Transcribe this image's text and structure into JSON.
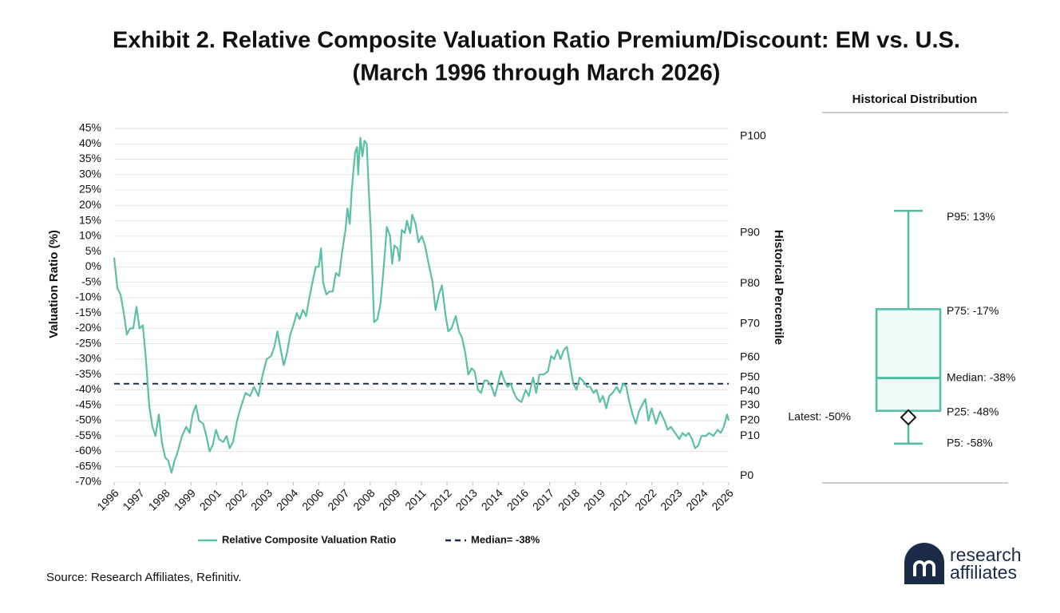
{
  "chart_data": [
    {
      "type": "line",
      "title": "Exhibit 2. Relative Composite Valuation Ratio Premium/Discount: EM vs. U.S.",
      "subtitle": "(March 1996 through March 2026)",
      "y_label": "Valuation Ratio (%)",
      "y2_label": "Historical Percentile",
      "xlim": [
        1996,
        2026
      ],
      "xticks": [
        {
          "value": 1996,
          "label": "1996"
        },
        {
          "value": 1997.25,
          "label": "1997"
        },
        {
          "value": 1998.5,
          "label": "1998"
        },
        {
          "value": 1999.75,
          "label": "1999"
        },
        {
          "value": 2001,
          "label": "2001"
        },
        {
          "value": 2002.25,
          "label": "2002"
        },
        {
          "value": 2003.5,
          "label": "2003"
        },
        {
          "value": 2004.75,
          "label": "2004"
        },
        {
          "value": 2006,
          "label": "2006"
        },
        {
          "value": 2007.25,
          "label": "2007"
        },
        {
          "value": 2008.5,
          "label": "2008"
        },
        {
          "value": 2009.75,
          "label": "2009"
        },
        {
          "value": 2011,
          "label": "2011"
        },
        {
          "value": 2012.25,
          "label": "2012"
        },
        {
          "value": 2013.5,
          "label": "2013"
        },
        {
          "value": 2014.75,
          "label": "2014"
        },
        {
          "value": 2016,
          "label": "2016"
        },
        {
          "value": 2017.25,
          "label": "2017"
        },
        {
          "value": 2018.5,
          "label": "2018"
        },
        {
          "value": 2019.75,
          "label": "2019"
        },
        {
          "value": 2021,
          "label": "2021"
        },
        {
          "value": 2022.25,
          "label": "2022"
        },
        {
          "value": 2023.5,
          "label": "2023"
        },
        {
          "value": 2024.75,
          "label": "2024"
        },
        {
          "value": 2026,
          "label": "2026"
        }
      ],
      "ylim": [
        -70,
        45
      ],
      "yticks": [
        {
          "value": 45,
          "label": "45%"
        },
        {
          "value": 40,
          "label": "40%"
        },
        {
          "value": 35,
          "label": "35%"
        },
        {
          "value": 30,
          "label": "30%"
        },
        {
          "value": 25,
          "label": "25%"
        },
        {
          "value": 20,
          "label": "20%"
        },
        {
          "value": 15,
          "label": "15%"
        },
        {
          "value": 10,
          "label": "10%"
        },
        {
          "value": 5,
          "label": "5%"
        },
        {
          "value": 0,
          "label": "0%"
        },
        {
          "value": -5,
          "label": "-5%"
        },
        {
          "value": -10,
          "label": "-10%"
        },
        {
          "value": -15,
          "label": "-15%"
        },
        {
          "value": -20,
          "label": "-20%"
        },
        {
          "value": -25,
          "label": "-25%"
        },
        {
          "value": -30,
          "label": "-30%"
        },
        {
          "value": -35,
          "label": "-35%"
        },
        {
          "value": -40,
          "label": "-40%"
        },
        {
          "value": -45,
          "label": "-45%"
        },
        {
          "value": -50,
          "label": "-50%"
        },
        {
          "value": -55,
          "label": "-55%"
        },
        {
          "value": -60,
          "label": "-60%"
        },
        {
          "value": -65,
          "label": "-65%"
        },
        {
          "value": -70,
          "label": "-70%"
        }
      ],
      "y2lim": [
        -70,
        45
      ],
      "y2ticks": [
        {
          "value": 42.5,
          "label": "P100"
        },
        {
          "value": 11,
          "label": "P90"
        },
        {
          "value": -5.5,
          "label": "P80"
        },
        {
          "value": -18.5,
          "label": "P70"
        },
        {
          "value": -29.5,
          "label": "P60"
        },
        {
          "value": -36,
          "label": "P50"
        },
        {
          "value": -40.5,
          "label": "P40"
        },
        {
          "value": -45,
          "label": "P30"
        },
        {
          "value": -50,
          "label": "P20"
        },
        {
          "value": -55,
          "label": "P10"
        },
        {
          "value": -68,
          "label": "P0"
        }
      ],
      "grid": true,
      "x": [
        1996.0,
        1996.16,
        1996.31,
        1996.47,
        1996.62,
        1996.78,
        1996.93,
        1997.09,
        1997.24,
        1997.4,
        1997.55,
        1997.71,
        1997.87,
        1998.02,
        1998.18,
        1998.33,
        1998.49,
        1998.64,
        1998.8,
        1998.95,
        1999.11,
        1999.31,
        1999.52,
        1999.68,
        1999.83,
        1999.99,
        2000.14,
        2000.35,
        2000.5,
        2000.66,
        2000.81,
        2000.97,
        2001.12,
        2001.33,
        2001.49,
        2001.64,
        2001.8,
        2002.0,
        2002.21,
        2002.42,
        2002.63,
        2002.83,
        2003.04,
        2003.25,
        2003.45,
        2003.66,
        2003.82,
        2003.97,
        2004.13,
        2004.28,
        2004.44,
        2004.6,
        2004.75,
        2004.91,
        2005.06,
        2005.22,
        2005.37,
        2005.53,
        2005.68,
        2005.84,
        2005.99,
        2006.1,
        2006.2,
        2006.36,
        2006.51,
        2006.67,
        2006.82,
        2006.98,
        2007.13,
        2007.29,
        2007.39,
        2007.5,
        2007.6,
        2007.76,
        2007.86,
        2007.91,
        2008.02,
        2008.12,
        2008.22,
        2008.33,
        2008.43,
        2008.54,
        2008.69,
        2008.85,
        2009.0,
        2009.16,
        2009.31,
        2009.47,
        2009.57,
        2009.68,
        2009.83,
        2009.93,
        2010.04,
        2010.19,
        2010.29,
        2010.45,
        2010.55,
        2010.71,
        2010.86,
        2011.02,
        2011.17,
        2011.38,
        2011.54,
        2011.69,
        2011.85,
        2012.0,
        2012.16,
        2012.31,
        2012.47,
        2012.67,
        2012.83,
        2012.98,
        2013.14,
        2013.29,
        2013.45,
        2013.6,
        2013.76,
        2013.91,
        2014.07,
        2014.22,
        2014.43,
        2014.58,
        2014.74,
        2014.89,
        2015.05,
        2015.2,
        2015.36,
        2015.51,
        2015.67,
        2015.88,
        2016.09,
        2016.24,
        2016.45,
        2016.6,
        2016.76,
        2016.97,
        2017.17,
        2017.33,
        2017.48,
        2017.64,
        2017.79,
        2017.95,
        2018.1,
        2018.26,
        2018.41,
        2018.57,
        2018.72,
        2018.88,
        2019.09,
        2019.24,
        2019.4,
        2019.55,
        2019.71,
        2019.86,
        2020.02,
        2020.17,
        2020.33,
        2020.53,
        2020.69,
        2020.84,
        2021.0,
        2021.15,
        2021.31,
        2021.46,
        2021.62,
        2021.77,
        2021.93,
        2022.08,
        2022.24,
        2022.45,
        2022.65,
        2022.86,
        2023.02,
        2023.17,
        2023.38,
        2023.59,
        2023.74,
        2023.9,
        2024.05,
        2024.21,
        2024.36,
        2024.52,
        2024.67,
        2024.88,
        2025.04,
        2025.25,
        2025.45,
        2025.61,
        2025.76,
        2025.92,
        2026.0
      ],
      "series": [
        {
          "name": "Relative Composite Valuation Ratio",
          "color": "#5bbfa8",
          "values": [
            3,
            -7,
            -9,
            -15,
            -22,
            -20,
            -20,
            -13,
            -20,
            -19,
            -30,
            -45,
            -52,
            -55,
            -48,
            -57,
            -62,
            -63,
            -67,
            -63,
            -60,
            -55,
            -52,
            -54,
            -48,
            -45,
            -50,
            -51,
            -55,
            -60,
            -58,
            -53,
            -56,
            -57,
            -55,
            -59,
            -57,
            -50,
            -45,
            -41,
            -42,
            -39,
            -42,
            -35,
            -30,
            -29,
            -26,
            -21,
            -27,
            -32,
            -28,
            -22,
            -19,
            -15,
            -17,
            -14,
            -16,
            -10,
            -5,
            0,
            0,
            6,
            -5,
            -9,
            -8,
            -8,
            -2,
            -3,
            5,
            12,
            19,
            14,
            25,
            37,
            39,
            30,
            42,
            36,
            41,
            40,
            25,
            10,
            -18,
            -17,
            -12,
            0,
            13,
            10,
            1,
            7,
            6,
            2,
            12,
            11,
            15,
            11,
            17,
            14,
            8,
            10,
            7,
            0,
            -5,
            -14,
            -9,
            -6,
            -15,
            -21,
            -20,
            -16,
            -21,
            -23,
            -28,
            -35,
            -33,
            -34,
            -40,
            -41,
            -37,
            -37,
            -39,
            -42,
            -38,
            -34,
            -37,
            -39,
            -38,
            -41,
            -43,
            -44,
            -40,
            -42,
            -36,
            -41,
            -35,
            -35,
            -34,
            -29,
            -30,
            -27,
            -30,
            -27,
            -26,
            -32,
            -38,
            -40,
            -36,
            -37,
            -39,
            -39,
            -41,
            -40,
            -44,
            -42,
            -46,
            -42,
            -41,
            -39,
            -41,
            -38,
            -39,
            -44,
            -48,
            -51,
            -47,
            -45,
            -43,
            -50,
            -46,
            -51,
            -47,
            -50,
            -53,
            -52,
            -54,
            -56,
            -54,
            -55,
            -54,
            -56,
            -59,
            -58,
            -55,
            -55,
            -54,
            -55,
            -53,
            -54,
            -52,
            -48,
            -50
          ]
        }
      ],
      "median": {
        "name": "Median= -38%",
        "value": -38,
        "color": "#1b2a47"
      }
    },
    {
      "type": "box",
      "title": "Historical Distribution",
      "ylim": [
        -70,
        43
      ],
      "color": "#4dbfa5",
      "box": {
        "p5": -58,
        "p25": -48,
        "median": -38,
        "p75": -17,
        "p95": 13,
        "latest": -50
      },
      "box_labels": {
        "p5": "P5: -58%",
        "p25": "P25: -48%",
        "median": "Median: -38%",
        "p75": "P75: -17%",
        "p95": "P95: 13%",
        "latest": "Latest: -50%"
      }
    }
  ],
  "source": "Source: Research Affiliates, Refinitiv.",
  "logo": {
    "line1": "research",
    "line2": "affiliates"
  }
}
